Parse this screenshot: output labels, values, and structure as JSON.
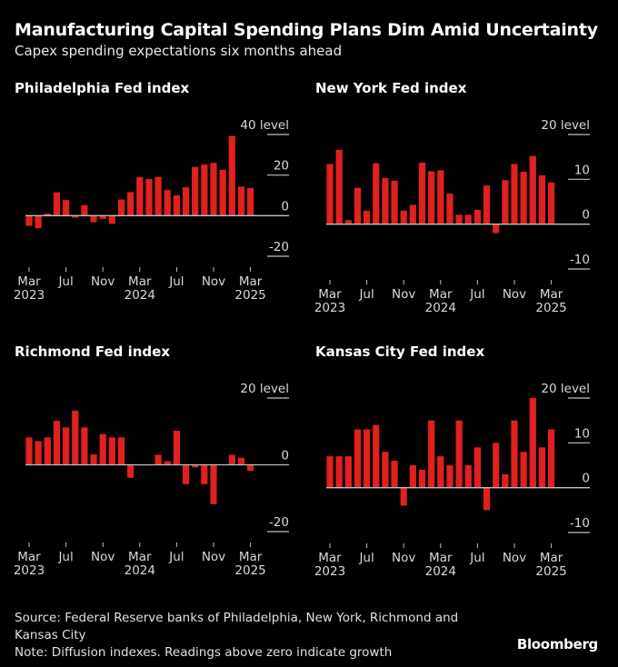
{
  "header": {
    "title": "Manufacturing Capital Spending Plans Dim Amid Uncertainty",
    "subtitle": "Capex spending expectations six months ahead"
  },
  "colors": {
    "bar": "#e0211d",
    "background": "#000000",
    "axis": "#bfbfbf",
    "text": "#ffffff"
  },
  "chart_data": [
    {
      "type": "bar",
      "title": "Philadelphia Fed index",
      "unit_label": "level",
      "ylim": [
        -20,
        40
      ],
      "yticks": [
        40,
        20,
        0,
        -20
      ],
      "x_ticks": [
        {
          "month": "Mar",
          "year": "2023",
          "index": 0
        },
        {
          "month": "Jul",
          "year": "",
          "index": 4
        },
        {
          "month": "Nov",
          "year": "",
          "index": 8
        },
        {
          "month": "Mar",
          "year": "2024",
          "index": 12
        },
        {
          "month": "Jul",
          "year": "",
          "index": 16
        },
        {
          "month": "Nov",
          "year": "",
          "index": 20
        },
        {
          "month": "Mar",
          "year": "2025",
          "index": 24
        }
      ],
      "categories": [
        "2023-03",
        "2023-04",
        "2023-05",
        "2023-06",
        "2023-07",
        "2023-08",
        "2023-09",
        "2023-10",
        "2023-11",
        "2023-12",
        "2024-01",
        "2024-02",
        "2024-03",
        "2024-04",
        "2024-05",
        "2024-06",
        "2024-07",
        "2024-08",
        "2024-09",
        "2024-10",
        "2024-11",
        "2024-12",
        "2025-01",
        "2025-02",
        "2025-03"
      ],
      "values": [
        -5.0,
        -6.2,
        1.0,
        11.5,
        7.7,
        -1.0,
        5.2,
        -3.2,
        -1.6,
        -4.0,
        8.0,
        11.6,
        19.0,
        18.1,
        19.1,
        12.6,
        10.0,
        14.0,
        24.0,
        25.2,
        26.0,
        22.6,
        39.3,
        14.3,
        13.6
      ],
      "grid": false,
      "legend": "none"
    },
    {
      "type": "bar",
      "title": "New York Fed index",
      "unit_label": "level",
      "ylim": [
        -10,
        20
      ],
      "yticks": [
        20,
        10,
        0,
        -10
      ],
      "x_ticks": [
        {
          "month": "Mar",
          "year": "2023",
          "index": 0
        },
        {
          "month": "Jul",
          "year": "",
          "index": 4
        },
        {
          "month": "Nov",
          "year": "",
          "index": 8
        },
        {
          "month": "Mar",
          "year": "2024",
          "index": 12
        },
        {
          "month": "Jul",
          "year": "",
          "index": 16
        },
        {
          "month": "Nov",
          "year": "",
          "index": 20
        },
        {
          "month": "Mar",
          "year": "2025",
          "index": 24
        }
      ],
      "categories": [
        "2023-03",
        "2023-04",
        "2023-05",
        "2023-06",
        "2023-07",
        "2023-08",
        "2023-09",
        "2023-10",
        "2023-11",
        "2023-12",
        "2024-01",
        "2024-02",
        "2024-03",
        "2024-04",
        "2024-05",
        "2024-06",
        "2024-07",
        "2024-08",
        "2024-09",
        "2024-10",
        "2024-11",
        "2024-12",
        "2025-01",
        "2025-02",
        "2025-03"
      ],
      "values": [
        13.4,
        16.6,
        0.9,
        8.1,
        3.0,
        13.6,
        10.3,
        9.7,
        3.0,
        4.3,
        13.7,
        11.8,
        12.0,
        6.8,
        2.1,
        2.1,
        3.2,
        8.6,
        -2.0,
        9.8,
        13.4,
        11.7,
        15.2,
        10.9,
        9.3
      ],
      "grid": false,
      "legend": "none"
    },
    {
      "type": "bar",
      "title": "Richmond Fed index",
      "unit_label": "level",
      "ylim": [
        -20,
        20
      ],
      "yticks": [
        20,
        0,
        -20
      ],
      "x_ticks": [
        {
          "month": "Mar",
          "year": "2023",
          "index": 0
        },
        {
          "month": "Jul",
          "year": "",
          "index": 4
        },
        {
          "month": "Nov",
          "year": "",
          "index": 8
        },
        {
          "month": "Mar",
          "year": "2024",
          "index": 12
        },
        {
          "month": "Jul",
          "year": "",
          "index": 16
        },
        {
          "month": "Nov",
          "year": "",
          "index": 20
        },
        {
          "month": "Mar",
          "year": "2025",
          "index": 24
        }
      ],
      "categories": [
        "2023-03",
        "2023-04",
        "2023-05",
        "2023-06",
        "2023-07",
        "2023-08",
        "2023-09",
        "2023-10",
        "2023-11",
        "2023-12",
        "2024-01",
        "2024-02",
        "2024-03",
        "2024-04",
        "2024-05",
        "2024-06",
        "2024-07",
        "2024-08",
        "2024-09",
        "2024-10",
        "2024-11",
        "2024-12",
        "2025-01",
        "2025-02",
        "2025-03"
      ],
      "values": [
        8.2,
        7.1,
        8.2,
        13.2,
        11.2,
        16.2,
        11.2,
        3.1,
        9.2,
        8.2,
        8.2,
        -3.9,
        -0.2,
        -0.2,
        3.0,
        1.1,
        10.2,
        -5.8,
        -0.8,
        -5.8,
        -11.8,
        0.1,
        3.0,
        2.1,
        -1.8
      ],
      "grid": false,
      "legend": "none"
    },
    {
      "type": "bar",
      "title": "Kansas City Fed index",
      "unit_label": "level",
      "ylim": [
        -10,
        20
      ],
      "yticks": [
        20,
        10,
        0,
        -10
      ],
      "x_ticks": [
        {
          "month": "Mar",
          "year": "2023",
          "index": 0
        },
        {
          "month": "Jul",
          "year": "",
          "index": 4
        },
        {
          "month": "Nov",
          "year": "",
          "index": 8
        },
        {
          "month": "Mar",
          "year": "2024",
          "index": 12
        },
        {
          "month": "Jul",
          "year": "",
          "index": 16
        },
        {
          "month": "Nov",
          "year": "",
          "index": 20
        },
        {
          "month": "Mar",
          "year": "2025",
          "index": 24
        }
      ],
      "categories": [
        "2023-03",
        "2023-04",
        "2023-05",
        "2023-06",
        "2023-07",
        "2023-08",
        "2023-09",
        "2023-10",
        "2023-11",
        "2023-12",
        "2024-01",
        "2024-02",
        "2024-03",
        "2024-04",
        "2024-05",
        "2024-06",
        "2024-07",
        "2024-08",
        "2024-09",
        "2024-10",
        "2024-11",
        "2024-12",
        "2025-01",
        "2025-02",
        "2025-03"
      ],
      "values": [
        7,
        7,
        7,
        13,
        13,
        14,
        8,
        6,
        -4,
        5,
        4,
        15,
        7,
        5,
        15,
        5,
        9,
        -5,
        10,
        3,
        15,
        8,
        20,
        9,
        13
      ],
      "grid": false,
      "legend": "none"
    }
  ],
  "footer": {
    "source": "Source: Federal Reserve banks of Philadelphia, New York, Richmond and",
    "source_cont": "Kansas City",
    "note": "Note: Diffusion indexes. Readings above zero indicate growth",
    "brand": "Bloomberg"
  }
}
